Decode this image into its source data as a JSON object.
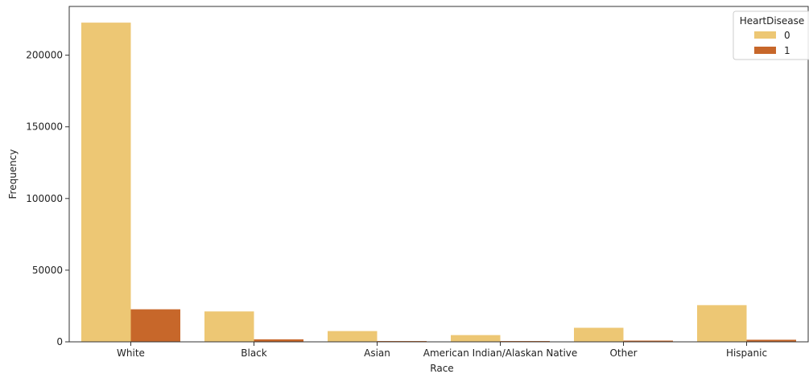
{
  "chart_data": {
    "type": "bar",
    "title": "",
    "xlabel": "Race",
    "ylabel": "Frequency",
    "categories": [
      "White",
      "Black",
      "Asian",
      "American Indian/Alaskan Native",
      "Other",
      "Hispanic"
    ],
    "series": [
      {
        "name": "0",
        "color": "#EDC774",
        "values": [
          222700,
          21200,
          7500,
          4700,
          9800,
          25600
        ]
      },
      {
        "name": "1",
        "color": "#C7672A",
        "values": [
          22700,
          1750,
          550,
          550,
          850,
          1450
        ]
      }
    ],
    "yticks": [
      0,
      50000,
      100000,
      150000,
      200000
    ],
    "ylim": [
      0,
      234000
    ],
    "grid": false,
    "legend": {
      "title": "HeartDisease",
      "placement": "top-right"
    }
  }
}
